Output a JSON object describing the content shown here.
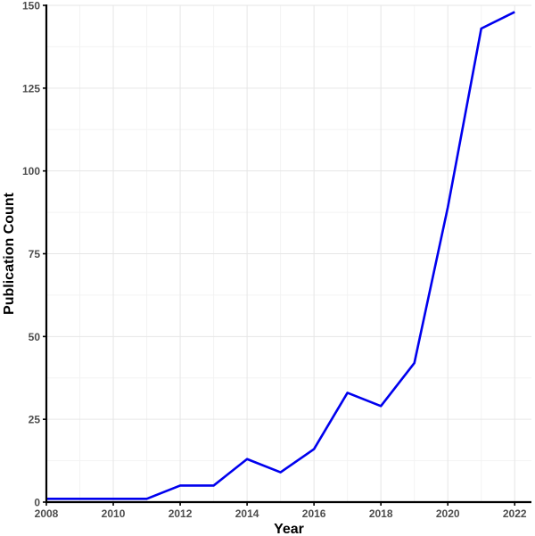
{
  "chart_data": {
    "type": "line",
    "title": "",
    "xlabel": "Year",
    "ylabel": "Publication Count",
    "xlim": [
      2008,
      2022.5
    ],
    "ylim": [
      0,
      150
    ],
    "x_ticks": [
      2008,
      2010,
      2012,
      2014,
      2016,
      2018,
      2020,
      2022
    ],
    "x_tick_labels": [
      "2008",
      "2010",
      "2012",
      "2014",
      "2016",
      "2018",
      "2020",
      "2022"
    ],
    "y_ticks": [
      0,
      25,
      50,
      75,
      100,
      125,
      150
    ],
    "y_tick_labels": [
      "0",
      "25",
      "50",
      "75",
      "100",
      "125",
      "150"
    ],
    "grid": true,
    "legend": "none",
    "series": [
      {
        "color": "#0000ee",
        "x": [
          2008,
          2009,
          2010,
          2011,
          2012,
          2013,
          2014,
          2015,
          2016,
          2017,
          2018,
          2019,
          2020,
          2021,
          2022
        ],
        "y": [
          1,
          1,
          1,
          1,
          5,
          5,
          13,
          9,
          16,
          33,
          29,
          42,
          89,
          143,
          148
        ]
      }
    ]
  }
}
